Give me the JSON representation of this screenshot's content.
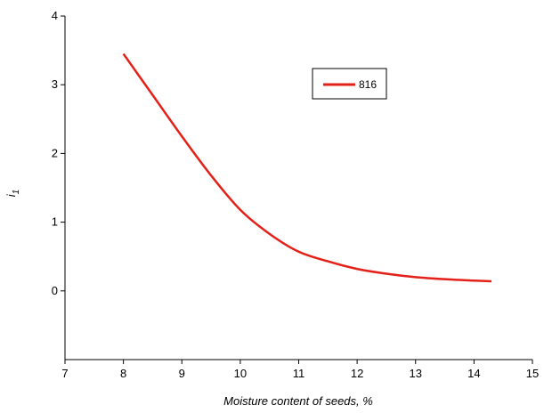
{
  "chart_data": {
    "type": "line",
    "title": "",
    "xlabel": "Moisture content of seeds, %",
    "ylabel": {
      "main": "i",
      "sub": "1"
    },
    "xlim": [
      7,
      15
    ],
    "ylim": [
      -1,
      4
    ],
    "xticks": [
      "7",
      "8",
      "9",
      "10",
      "11",
      "12",
      "13",
      "14",
      "15"
    ],
    "yticks": [
      "0",
      "1",
      "2",
      "3",
      "4"
    ],
    "grid": false,
    "legend_position": "top-right",
    "series": [
      {
        "name": "816",
        "color": "#e32119",
        "x": [
          8.0,
          8.5,
          9.0,
          9.5,
          10.0,
          10.5,
          11.0,
          11.5,
          12.0,
          12.5,
          13.0,
          13.5,
          14.0,
          14.3
        ],
        "y": [
          3.45,
          2.85,
          2.25,
          1.68,
          1.18,
          0.83,
          0.57,
          0.43,
          0.32,
          0.25,
          0.2,
          0.17,
          0.15,
          0.14
        ]
      }
    ]
  }
}
